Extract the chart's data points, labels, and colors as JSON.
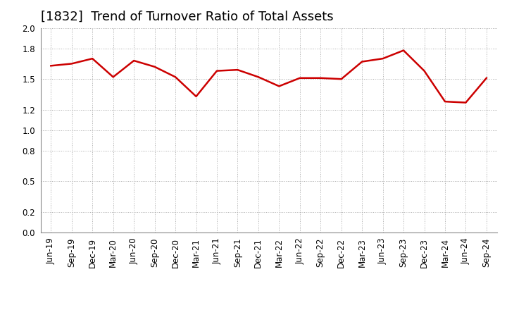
{
  "title": "[1832]  Trend of Turnover Ratio of Total Assets",
  "labels": [
    "Jun-19",
    "Sep-19",
    "Dec-19",
    "Mar-20",
    "Jun-20",
    "Sep-20",
    "Dec-20",
    "Mar-21",
    "Jun-21",
    "Sep-21",
    "Dec-21",
    "Mar-22",
    "Jun-22",
    "Sep-22",
    "Dec-22",
    "Mar-23",
    "Jun-23",
    "Sep-23",
    "Dec-23",
    "Mar-24",
    "Jun-24",
    "Sep-24"
  ],
  "values": [
    1.63,
    1.65,
    1.7,
    1.52,
    1.68,
    1.62,
    1.52,
    1.33,
    1.58,
    1.59,
    1.52,
    1.43,
    1.51,
    1.51,
    1.5,
    1.67,
    1.7,
    1.78,
    1.58,
    1.28,
    1.27,
    1.51
  ],
  "line_color": "#cc0000",
  "background_color": "#ffffff",
  "grid_color": "#aaaaaa",
  "ylim": [
    0.0,
    2.0
  ],
  "yticks": [
    0.0,
    0.2,
    0.5,
    0.8,
    1.0,
    1.2,
    1.5,
    1.8,
    2.0
  ],
  "title_fontsize": 13,
  "tick_fontsize": 8.5,
  "line_width": 1.8
}
